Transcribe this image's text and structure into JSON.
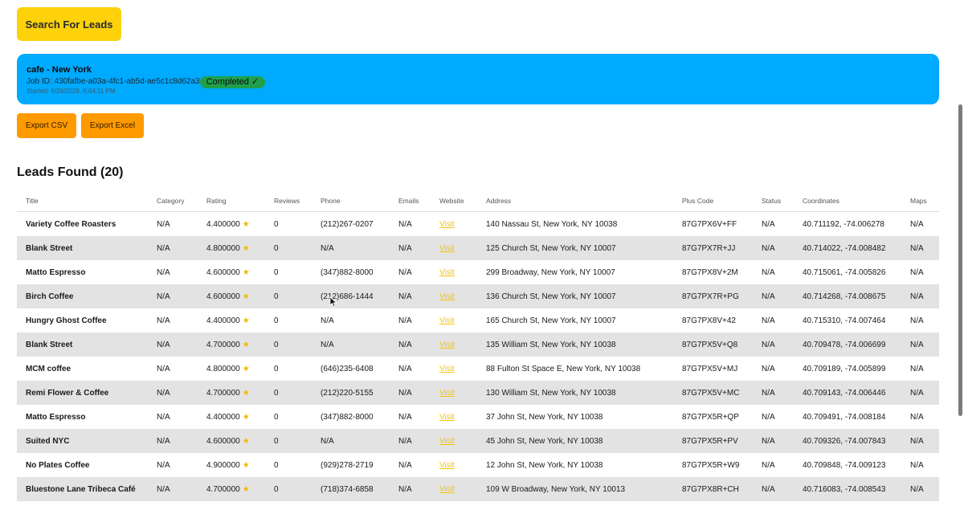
{
  "search_button": {
    "label": "Search For Leads"
  },
  "job": {
    "title": "cafe - New York",
    "job_id": "Job ID: 430fafbe-a03a-4fc1-ab5d-ae5c1c8d62a3",
    "status": "Completed ✓",
    "started": "Started: 6/26/2026, 6:04:11 PM",
    "card_color": "#00aaff",
    "status_color": "#21a04c"
  },
  "export": {
    "csv_label": "Export CSV",
    "excel_label": "Export Excel"
  },
  "leads": {
    "heading": "Leads Found (20)",
    "columns": [
      "Title",
      "Category",
      "Rating",
      "Reviews",
      "Phone",
      "Emails",
      "Website",
      "Address",
      "Plus Code",
      "Status",
      "Coordinates",
      "Maps"
    ],
    "rows": [
      {
        "title": "Variety Coffee Roasters",
        "category": "N/A",
        "rating": "4.400000",
        "reviews": "0",
        "phone": "(212)267-0207",
        "emails": "N/A",
        "website": "Visit",
        "address": "140 Nassau St, New York, NY 10038",
        "plus_code": "87G7PX6V+FF",
        "status": "N/A",
        "coordinates": "40.711192, -74.006278",
        "maps": "N/A"
      },
      {
        "title": "Blank Street",
        "category": "N/A",
        "rating": "4.800000",
        "reviews": "0",
        "phone": "N/A",
        "emails": "N/A",
        "website": "Visit",
        "address": "125 Church St, New York, NY 10007",
        "plus_code": "87G7PX7R+JJ",
        "status": "N/A",
        "coordinates": "40.714022, -74.008482",
        "maps": "N/A"
      },
      {
        "title": "Matto Espresso",
        "category": "N/A",
        "rating": "4.600000",
        "reviews": "0",
        "phone": "(347)882-8000",
        "emails": "N/A",
        "website": "Visit",
        "address": "299 Broadway, New York, NY 10007",
        "plus_code": "87G7PX8V+2M",
        "status": "N/A",
        "coordinates": "40.715061, -74.005826",
        "maps": "N/A"
      },
      {
        "title": "Birch Coffee",
        "category": "N/A",
        "rating": "4.600000",
        "reviews": "0",
        "phone": "(212)686-1444",
        "emails": "N/A",
        "website": "Visit",
        "address": "136 Church St, New York, NY 10007",
        "plus_code": "87G7PX7R+PG",
        "status": "N/A",
        "coordinates": "40.714268, -74.008675",
        "maps": "N/A"
      },
      {
        "title": "Hungry Ghost Coffee",
        "category": "N/A",
        "rating": "4.400000",
        "reviews": "0",
        "phone": "N/A",
        "emails": "N/A",
        "website": "Visit",
        "address": "165 Church St, New York, NY 10007",
        "plus_code": "87G7PX8V+42",
        "status": "N/A",
        "coordinates": "40.715310, -74.007464",
        "maps": "N/A"
      },
      {
        "title": "Blank Street",
        "category": "N/A",
        "rating": "4.700000",
        "reviews": "0",
        "phone": "N/A",
        "emails": "N/A",
        "website": "Visit",
        "address": "135 William St, New York, NY 10038",
        "plus_code": "87G7PX5V+Q8",
        "status": "N/A",
        "coordinates": "40.709478, -74.006699",
        "maps": "N/A"
      },
      {
        "title": "MCM coffee",
        "category": "N/A",
        "rating": "4.800000",
        "reviews": "0",
        "phone": "(646)235-6408",
        "emails": "N/A",
        "website": "Visit",
        "address": "88 Fulton St Space E, New York, NY 10038",
        "plus_code": "87G7PX5V+MJ",
        "status": "N/A",
        "coordinates": "40.709189, -74.005899",
        "maps": "N/A"
      },
      {
        "title": "Remi Flower & Coffee",
        "category": "N/A",
        "rating": "4.700000",
        "reviews": "0",
        "phone": "(212)220-5155",
        "emails": "N/A",
        "website": "Visit",
        "address": "130 William St, New York, NY 10038",
        "plus_code": "87G7PX5V+MC",
        "status": "N/A",
        "coordinates": "40.709143, -74.006446",
        "maps": "N/A"
      },
      {
        "title": "Matto Espresso",
        "category": "N/A",
        "rating": "4.400000",
        "reviews": "0",
        "phone": "(347)882-8000",
        "emails": "N/A",
        "website": "Visit",
        "address": "37 John St, New York, NY 10038",
        "plus_code": "87G7PX5R+QP",
        "status": "N/A",
        "coordinates": "40.709491, -74.008184",
        "maps": "N/A"
      },
      {
        "title": "Suited NYC",
        "category": "N/A",
        "rating": "4.600000",
        "reviews": "0",
        "phone": "N/A",
        "emails": "N/A",
        "website": "Visit",
        "address": "45 John St, New York, NY 10038",
        "plus_code": "87G7PX5R+PV",
        "status": "N/A",
        "coordinates": "40.709326, -74.007843",
        "maps": "N/A"
      },
      {
        "title": "No Plates Coffee",
        "category": "N/A",
        "rating": "4.900000",
        "reviews": "0",
        "phone": "(929)278-2719",
        "emails": "N/A",
        "website": "Visit",
        "address": "12 John St, New York, NY 10038",
        "plus_code": "87G7PX5R+W9",
        "status": "N/A",
        "coordinates": "40.709848, -74.009123",
        "maps": "N/A"
      },
      {
        "title": "Bluestone Lane Tribeca Café",
        "category": "N/A",
        "rating": "4.700000",
        "reviews": "0",
        "phone": "(718)374-6858",
        "emails": "N/A",
        "website": "Visit",
        "address": "109 W Broadway, New York, NY 10013",
        "plus_code": "87G7PX8R+CH",
        "status": "N/A",
        "coordinates": "40.716083, -74.008543",
        "maps": "N/A"
      }
    ]
  },
  "icons": {
    "rating": "star-icon",
    "cursor": "mouse-pointer-icon"
  },
  "colors": {
    "search_button": "#fdd20b",
    "export_button": "#ff9a00",
    "link": "#f5c400",
    "star": "#f2b800"
  }
}
